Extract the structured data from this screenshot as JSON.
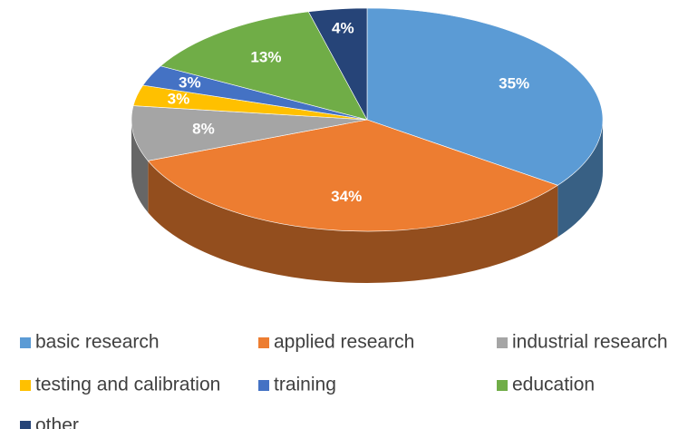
{
  "chart_data": {
    "type": "pie",
    "three_d": true,
    "categories": [
      "basic research",
      "applied research",
      "industrial research",
      "testing and calibration",
      "training",
      "education",
      "other"
    ],
    "values": [
      35,
      34,
      8,
      3,
      3,
      13,
      4
    ],
    "value_labels": [
      "35%",
      "34%",
      "8%",
      "3%",
      "3%",
      "13%",
      "4%"
    ],
    "colors": [
      "#5b9bd5",
      "#ed7d31",
      "#a5a5a5",
      "#ffc000",
      "#4472c4",
      "#70ad47",
      "#264478"
    ],
    "legend": "bottom"
  }
}
